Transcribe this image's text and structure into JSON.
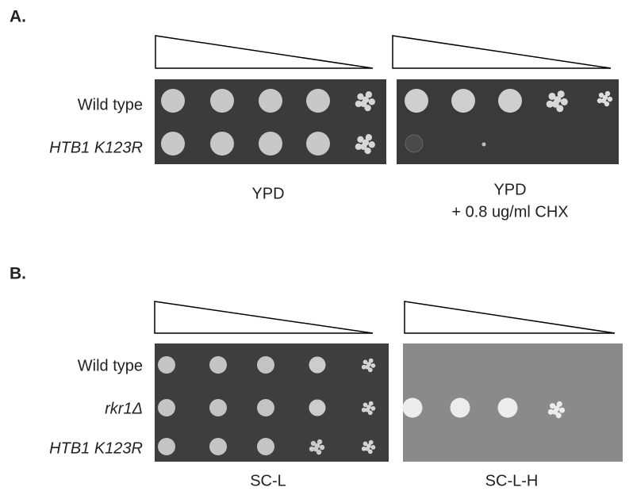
{
  "panels": [
    {
      "label": "A.",
      "strains": [
        "Wild type",
        "HTB1 K123R"
      ],
      "plates": [
        {
          "caption": "YPD"
        },
        {
          "caption": "YPD",
          "subcaption": "+ 0.8 ug/ml CHX"
        }
      ]
    },
    {
      "label": "B.",
      "strains": [
        "Wild type",
        "rkr1Δ",
        "HTB1 K123R"
      ],
      "plates": [
        {
          "caption": "SC-L"
        },
        {
          "caption": "SC-L-H"
        }
      ]
    }
  ]
}
